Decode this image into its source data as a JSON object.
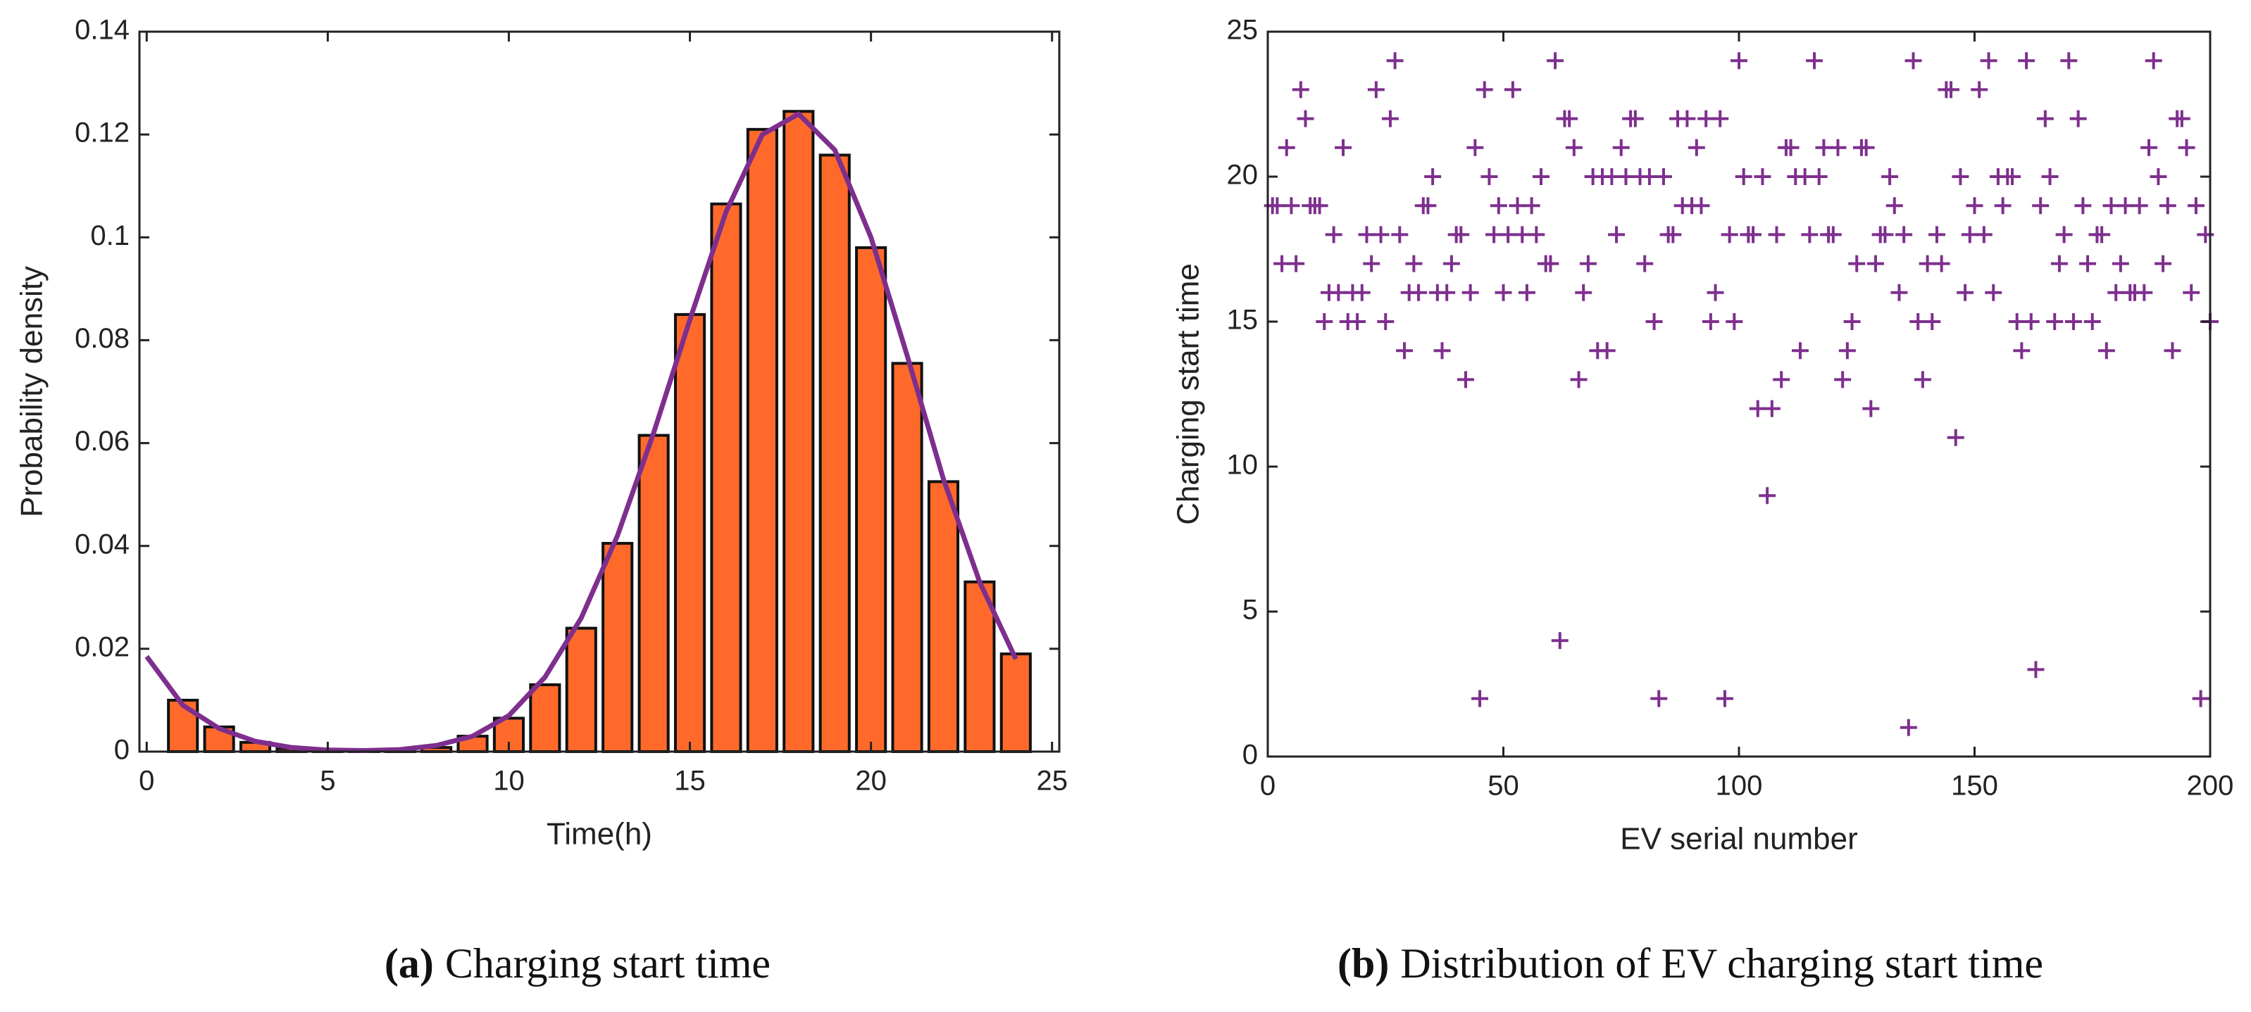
{
  "chart_data": [
    {
      "type": "bar",
      "caption_label": "(a)",
      "caption": "Charging start time",
      "xlabel": "Time(h)",
      "ylabel": "Probability density",
      "x": [
        1,
        2,
        3,
        4,
        5,
        6,
        7,
        8,
        9,
        10,
        11,
        12,
        13,
        14,
        15,
        16,
        17,
        18,
        19,
        20,
        21,
        22,
        23,
        24
      ],
      "values": [
        0.01,
        0.0048,
        0.0018,
        0.0006,
        0.0003,
        0.0002,
        0.0003,
        0.0008,
        0.003,
        0.0065,
        0.013,
        0.024,
        0.0405,
        0.0615,
        0.085,
        0.1065,
        0.121,
        0.1245,
        0.116,
        0.098,
        0.0755,
        0.0525,
        0.033,
        0.019
      ],
      "color": "#ff6a2b",
      "curve": {
        "x": [
          0,
          1,
          2,
          3,
          4,
          5,
          6,
          7,
          8,
          9,
          10,
          11,
          12,
          13,
          14,
          15,
          16,
          17,
          18,
          19,
          20,
          21,
          22,
          23,
          24
        ],
        "values": [
          0.0185,
          0.009,
          0.0045,
          0.002,
          0.0008,
          0.0003,
          0.0002,
          0.0004,
          0.0012,
          0.003,
          0.007,
          0.0145,
          0.026,
          0.042,
          0.062,
          0.084,
          0.105,
          0.12,
          0.124,
          0.117,
          0.1,
          0.077,
          0.053,
          0.033,
          0.018
        ],
        "color": "#7e2f8e"
      },
      "xlim": [
        -0.2,
        25.2
      ],
      "xticks": [
        0,
        5,
        10,
        15,
        20,
        25
      ],
      "ylim": [
        0,
        0.14
      ],
      "yticks": [
        0,
        0.02,
        0.04,
        0.06,
        0.08,
        0.1,
        0.12,
        0.14
      ]
    },
    {
      "type": "scatter",
      "caption_label": "(b)",
      "caption": "Distribution of EV charging start time",
      "xlabel": "EV serial number",
      "ylabel": "Charging start time",
      "color": "#7e2f8e",
      "x": [
        1,
        2,
        3,
        4,
        5,
        6,
        7,
        8,
        9,
        10,
        11,
        12,
        13,
        14,
        15,
        16,
        17,
        18,
        19,
        20,
        21,
        22,
        23,
        24,
        25,
        26,
        27,
        28,
        29,
        30,
        31,
        32,
        33,
        34,
        35,
        36,
        37,
        38,
        39,
        40,
        41,
        42,
        43,
        44,
        45,
        46,
        47,
        48,
        49,
        50,
        51,
        52,
        53,
        54,
        55,
        56,
        57,
        58,
        59,
        60,
        61,
        62,
        63,
        64,
        65,
        66,
        67,
        68,
        69,
        70,
        71,
        72,
        73,
        74,
        75,
        76,
        77,
        78,
        79,
        80,
        81,
        82,
        83,
        84,
        85,
        86,
        87,
        88,
        89,
        90,
        91,
        92,
        93,
        94,
        95,
        96,
        97,
        98,
        99,
        100,
        101,
        102,
        103,
        104,
        105,
        106,
        107,
        108,
        109,
        110,
        111,
        112,
        113,
        114,
        115,
        116,
        117,
        118,
        119,
        120,
        121,
        122,
        123,
        124,
        125,
        126,
        127,
        128,
        129,
        130,
        131,
        132,
        133,
        134,
        135,
        136,
        137,
        138,
        139,
        140,
        141,
        142,
        143,
        144,
        145,
        146,
        147,
        148,
        149,
        150,
        151,
        152,
        153,
        154,
        155,
        156,
        157,
        158,
        159,
        160,
        161,
        162,
        163,
        164,
        165,
        166,
        167,
        168,
        169,
        170,
        171,
        172,
        173,
        174,
        175,
        176,
        177,
        178,
        179,
        180,
        181,
        182,
        183,
        184,
        185,
        186,
        187,
        188,
        189,
        190,
        191,
        192,
        193,
        194,
        195,
        196,
        197,
        198,
        199,
        200
      ],
      "values": [
        19,
        19,
        17,
        21,
        19,
        17,
        23,
        22,
        19,
        19,
        19,
        15,
        16,
        18,
        16,
        21,
        15,
        16,
        15,
        16,
        18,
        17,
        23,
        18,
        15,
        22,
        24,
        18,
        14,
        16,
        17,
        16,
        19,
        19,
        20,
        16,
        14,
        16,
        17,
        18,
        18,
        13,
        16,
        21,
        2,
        23,
        20,
        18,
        19,
        16,
        18,
        23,
        19,
        18,
        16,
        19,
        18,
        20,
        17,
        17,
        24,
        4,
        22,
        22,
        21,
        13,
        16,
        17,
        20,
        14,
        20,
        14,
        20,
        18,
        21,
        20,
        22,
        22,
        20,
        17,
        20,
        15,
        2,
        20,
        18,
        18,
        22,
        19,
        22,
        19,
        21,
        19,
        22,
        15,
        16,
        22,
        2,
        18,
        15,
        24,
        20,
        18,
        18,
        12,
        20,
        9,
        12,
        18,
        13,
        21,
        21,
        20,
        14,
        20,
        18,
        24,
        20,
        21,
        18,
        18,
        21,
        13,
        14,
        15,
        17,
        21,
        21,
        12,
        17,
        18,
        18,
        20,
        19,
        16,
        18,
        1,
        24,
        15,
        13,
        17,
        15,
        18,
        17,
        23,
        23,
        11,
        20,
        16,
        18,
        19,
        23,
        18,
        24,
        16,
        20,
        19,
        20,
        20,
        15,
        14,
        24,
        15,
        3,
        19,
        22,
        20,
        15,
        17,
        18,
        24,
        15,
        22,
        19,
        17,
        15,
        18,
        18,
        14,
        19,
        16,
        17,
        19,
        16,
        16,
        19,
        16,
        21,
        24,
        20,
        17,
        19,
        14,
        22,
        22,
        21,
        16,
        19,
        2,
        18,
        15
      ],
      "xlim": [
        0,
        200
      ],
      "xticks": [
        0,
        50,
        100,
        150,
        200
      ],
      "ylim": [
        0,
        25
      ],
      "yticks": [
        0,
        5,
        10,
        15,
        20,
        25
      ]
    }
  ]
}
